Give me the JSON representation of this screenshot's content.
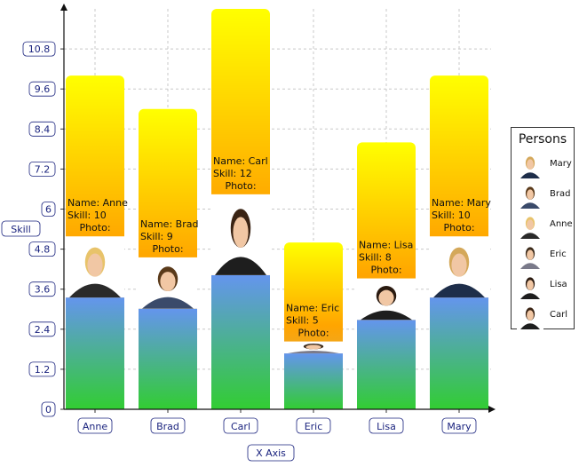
{
  "chart_data": {
    "type": "bar",
    "categories": [
      "Anne",
      "Brad",
      "Carl",
      "Eric",
      "Lisa",
      "Mary"
    ],
    "values": [
      10,
      9,
      12,
      5,
      8,
      10
    ],
    "xlabel": "X Axis",
    "ylabel": "Skill",
    "ylim": [
      0,
      12
    ],
    "yticks": [
      "0",
      "1.2",
      "2.4",
      "3.6",
      "4.8",
      "6",
      "7.2",
      "8.4",
      "9.6",
      "10.8"
    ],
    "grid": true,
    "legend": {
      "title": "Persons",
      "placement": "right",
      "entries": [
        "Mary",
        "Brad",
        "Anne",
        "Eric",
        "Lisa",
        "Carl"
      ]
    },
    "info_labels": {
      "name": "Name:",
      "skill": "Skill:",
      "photo": "Photo:"
    },
    "colors": {
      "top_gradient": [
        "#ffff00",
        "#ffa500",
        "#c8a878"
      ],
      "bottom_gradient": [
        "#6495ed",
        "#32cd32"
      ],
      "axis_text": "#1a237e",
      "grid": "#c8c8c8"
    }
  }
}
